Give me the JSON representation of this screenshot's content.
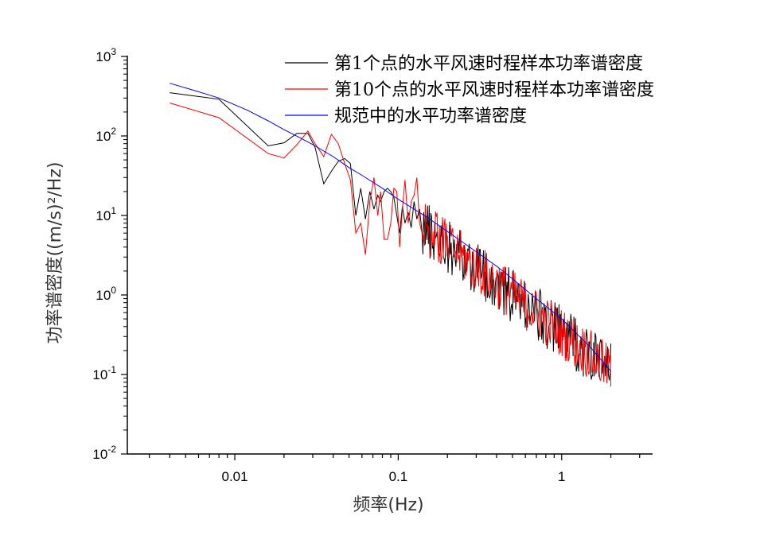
{
  "chart_data": {
    "type": "line",
    "xscale": "log",
    "yscale": "log",
    "xlim": [
      0.0022,
      3.6
    ],
    "ylim": [
      0.01,
      1000
    ],
    "xlabel": "频率(Hz)",
    "ylabel": "功率谱密度((m/s)²/Hz)",
    "x_ticks": [
      {
        "value": 0.01,
        "label": "0.01"
      },
      {
        "value": 0.1,
        "label": "0.1"
      },
      {
        "value": 1,
        "label": "1"
      }
    ],
    "y_ticks": [
      {
        "value": 1000,
        "base": "10",
        "exp": "3"
      },
      {
        "value": 100,
        "base": "10",
        "exp": "2"
      },
      {
        "value": 10,
        "base": "10",
        "exp": "1"
      },
      {
        "value": 1,
        "base": "10",
        "exp": "0"
      },
      {
        "value": 0.1,
        "base": "10",
        "exp": "-1"
      },
      {
        "value": 0.01,
        "base": "10",
        "exp": "-2"
      }
    ],
    "legend_position": "top-right",
    "series": [
      {
        "name": "第1个点的水平风速时程样本功率谱密度",
        "color": "#000000",
        "points": [
          [
            0.004,
            350
          ],
          [
            0.008,
            290
          ],
          [
            0.016,
            75
          ],
          [
            0.02,
            82
          ],
          [
            0.024,
            108
          ],
          [
            0.028,
            108
          ],
          [
            0.031,
            72
          ],
          [
            0.035,
            25
          ],
          [
            0.039,
            36
          ],
          [
            0.043,
            48
          ],
          [
            0.047,
            52
          ],
          [
            0.051,
            45
          ],
          [
            0.055,
            10
          ],
          [
            0.059,
            22
          ],
          [
            0.063,
            9
          ],
          [
            0.067,
            20
          ],
          [
            0.071,
            12
          ],
          [
            0.075,
            18
          ],
          [
            0.078,
            15
          ],
          [
            0.082,
            20
          ],
          [
            0.086,
            22
          ],
          [
            0.09,
            20
          ],
          [
            0.094,
            17
          ],
          [
            0.098,
            10
          ],
          [
            0.102,
            6
          ],
          [
            0.106,
            13
          ],
          [
            0.11,
            8
          ],
          [
            0.115,
            11
          ],
          [
            0.12,
            7
          ],
          [
            0.125,
            15
          ],
          [
            0.13,
            9
          ],
          [
            0.135,
            12
          ],
          [
            0.14,
            6
          ]
        ],
        "trend": {
          "from": [
            0.14,
            8
          ],
          "to": [
            2.0,
            0.12
          ],
          "scatter_decades": 0.35,
          "n": 240
        }
      },
      {
        "name": "第10个点的水平风速时程样本功率谱密度",
        "color": "#ff0000",
        "points": [
          [
            0.004,
            260
          ],
          [
            0.008,
            170
          ],
          [
            0.016,
            60
          ],
          [
            0.02,
            53
          ],
          [
            0.024,
            78
          ],
          [
            0.028,
            115
          ],
          [
            0.031,
            80
          ],
          [
            0.035,
            55
          ],
          [
            0.039,
            105
          ],
          [
            0.043,
            80
          ],
          [
            0.047,
            45
          ],
          [
            0.051,
            28
          ],
          [
            0.055,
            6
          ],
          [
            0.059,
            8
          ],
          [
            0.063,
            3.2
          ],
          [
            0.067,
            15
          ],
          [
            0.071,
            30
          ],
          [
            0.075,
            10
          ],
          [
            0.078,
            20
          ],
          [
            0.082,
            5
          ],
          [
            0.086,
            5
          ],
          [
            0.09,
            8
          ],
          [
            0.094,
            22
          ],
          [
            0.098,
            20
          ],
          [
            0.102,
            4
          ],
          [
            0.106,
            12
          ],
          [
            0.11,
            28
          ],
          [
            0.115,
            8
          ],
          [
            0.12,
            15
          ],
          [
            0.125,
            18
          ],
          [
            0.13,
            30
          ],
          [
            0.135,
            8
          ],
          [
            0.14,
            6
          ]
        ],
        "trend": {
          "from": [
            0.14,
            8
          ],
          "to": [
            2.0,
            0.12
          ],
          "scatter_decades": 0.32,
          "n": 240
        }
      },
      {
        "name": "规范中的水平功率谱密度",
        "color": "#0000ff",
        "points": [
          [
            0.004,
            460
          ],
          [
            0.006,
            360
          ],
          [
            0.008,
            300
          ],
          [
            0.012,
            210
          ],
          [
            0.016,
            155
          ],
          [
            0.02,
            120
          ],
          [
            0.025,
            95
          ],
          [
            0.03,
            78
          ],
          [
            0.04,
            55
          ],
          [
            0.05,
            40
          ],
          [
            0.06,
            32
          ],
          [
            0.08,
            22
          ],
          [
            0.1,
            16
          ],
          [
            0.15,
            9.5
          ],
          [
            0.2,
            6.3
          ],
          [
            0.3,
            3.5
          ],
          [
            0.4,
            2.3
          ],
          [
            0.5,
            1.6
          ],
          [
            0.7,
            0.9
          ],
          [
            1.0,
            0.5
          ],
          [
            1.5,
            0.22
          ],
          [
            2.0,
            0.11
          ]
        ]
      }
    ]
  }
}
